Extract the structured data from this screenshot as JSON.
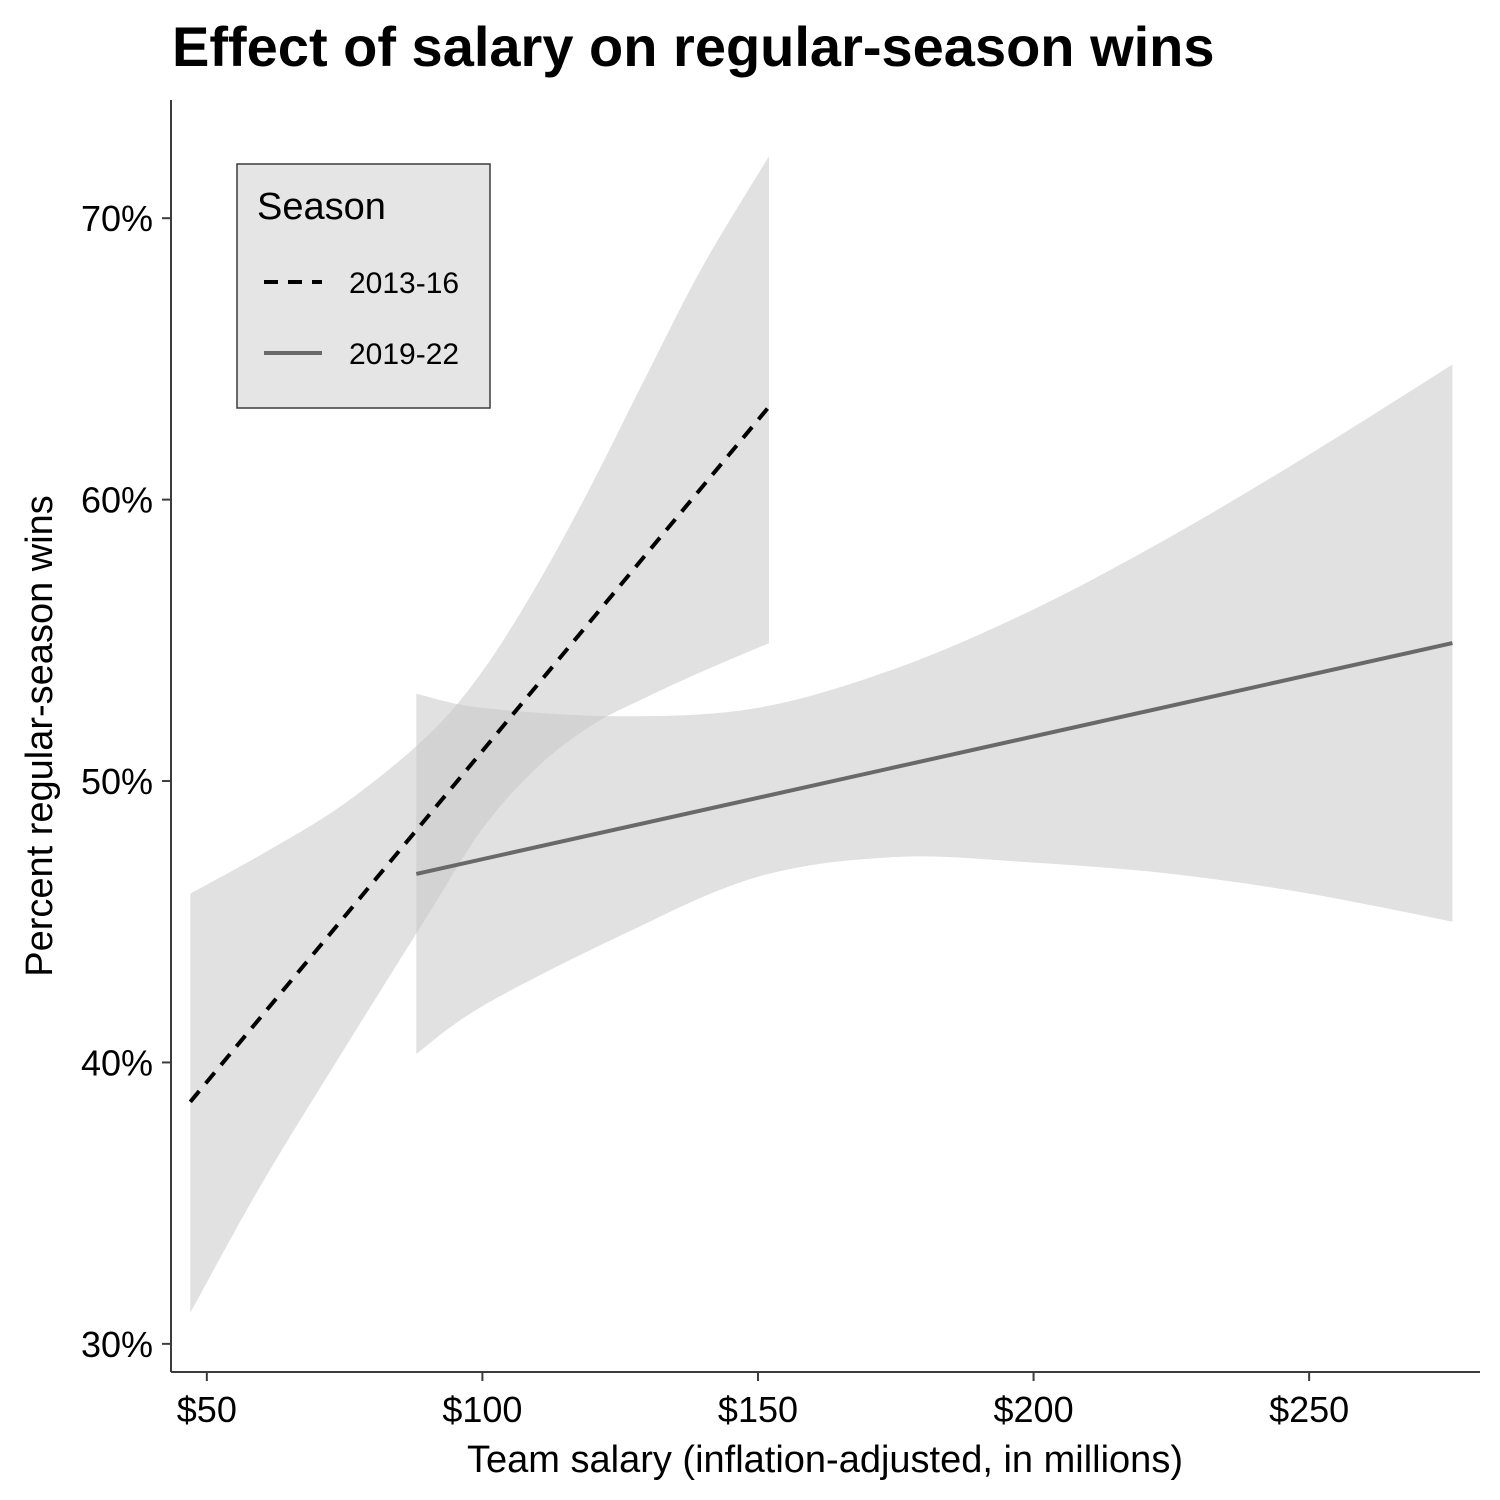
{
  "chart_data": {
    "type": "line",
    "title": "Effect of salary on regular-season wins",
    "xlabel": "Team salary (inflation-adjusted, in millions)",
    "ylabel": "Percent regular-season wins",
    "xlim": [
      43.5,
      281
    ],
    "ylim": [
      29.0,
      74.2
    ],
    "x_ticks": [
      50,
      100,
      150,
      200,
      250
    ],
    "x_tick_labels": [
      "$50",
      "$100",
      "$150",
      "$200",
      "$250"
    ],
    "y_ticks": [
      30,
      40,
      50,
      60,
      70
    ],
    "y_tick_labels": [
      "30%",
      "40%",
      "50%",
      "60%",
      "70%"
    ],
    "grid": false,
    "legend": {
      "title": "Season",
      "position": "top-left"
    },
    "series": [
      {
        "name": "2013-16",
        "line_style": "dashed",
        "color": "#000000",
        "x": [
          47,
          152
        ],
        "y": [
          38.6,
          63.3
        ],
        "ci_band": {
          "x": [
            47,
            60,
            75,
            90,
            100,
            110,
            120,
            130,
            140,
            152
          ],
          "lower": [
            31.1,
            35.7,
            40.5,
            45.2,
            48.3,
            50.5,
            52.0,
            53.0,
            53.9,
            54.9
          ],
          "upper": [
            46.0,
            47.4,
            49.2,
            51.6,
            53.9,
            57.0,
            60.6,
            64.5,
            68.3,
            72.2
          ]
        }
      },
      {
        "name": "2019-22",
        "line_style": "solid",
        "color": "#696969",
        "x": [
          88,
          276
        ],
        "y": [
          46.7,
          54.9
        ],
        "ci_band": {
          "x": [
            88,
            100,
            125,
            150,
            175,
            200,
            225,
            250,
            276
          ],
          "lower": [
            40.3,
            42.0,
            44.5,
            46.6,
            47.3,
            47.1,
            46.7,
            46.0,
            45.0
          ],
          "upper": [
            53.1,
            52.6,
            52.3,
            52.6,
            54.0,
            56.1,
            58.7,
            61.6,
            64.8
          ]
        }
      }
    ]
  },
  "colors": {
    "band_fill": "#c8c8c8",
    "axis": "#3c3c3c",
    "legend_bg": "#e5e5e5"
  }
}
